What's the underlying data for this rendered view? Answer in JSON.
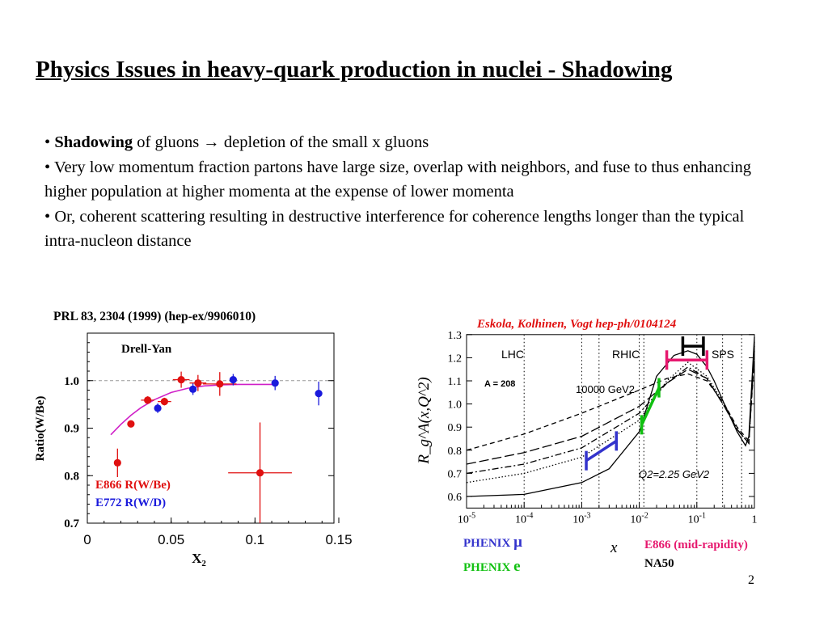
{
  "title": "Physics Issues in heavy-quark production in nuclei - Shadowing",
  "bullets": {
    "b1_bold": "Shadowing",
    "b1_rest": "of gluons → depletion of the small x gluons",
    "b2": "Very low momentum fraction partons have large size, overlap with neighbors, and fuse to thus enhancing higher population at higher momenta at the expense of lower momenta",
    "b3": "Or, coherent scattering resulting in destructive interference for coherence lengths longer than the typical intra-nucleon distance"
  },
  "page_number": "2",
  "colors": {
    "red": "#e01010",
    "blue": "#1a1adc",
    "magenta": "#d020c8",
    "pink": "#e6186e",
    "green": "#10c010",
    "indigo": "#3333cc"
  },
  "chart_data": [
    {
      "type": "scatter",
      "reference": "PRL 83, 2304 (1999) (hep-ex/9906010)",
      "annotation": "Drell-Yan",
      "xlabel": "X",
      "xlabel_sub": "2",
      "ylabel": "Ratio(W/Be)",
      "xlim": [
        0,
        0.15
      ],
      "ylim": [
        0.7,
        1.1
      ],
      "xticks": [
        "0",
        "0.05",
        "0.1",
        "0.15"
      ],
      "yticks": [
        "0.7",
        "0.8",
        "0.9",
        "1.0"
      ],
      "reference_line": 1.0,
      "series": [
        {
          "name": "E866 R(W/Be)",
          "color": "#e01010",
          "points": [
            {
              "x": 0.018,
              "y": 0.827,
              "yerr": 0.03,
              "xerr": 0
            },
            {
              "x": 0.026,
              "y": 0.909,
              "yerr": 0.006,
              "xerr": 0
            },
            {
              "x": 0.036,
              "y": 0.959,
              "yerr": 0.008,
              "xerr": 0.004
            },
            {
              "x": 0.046,
              "y": 0.956,
              "yerr": 0.008,
              "xerr": 0.004
            },
            {
              "x": 0.056,
              "y": 1.002,
              "yerr": 0.017,
              "xerr": 0.005
            },
            {
              "x": 0.066,
              "y": 0.995,
              "yerr": 0.017,
              "xerr": 0.005
            },
            {
              "x": 0.079,
              "y": 0.993,
              "yerr": 0.025,
              "xerr": 0.01
            },
            {
              "x": 0.103,
              "y": 0.806,
              "yerr": 0.106,
              "xerr": 0.019
            }
          ]
        },
        {
          "name": "E772 R(W/D)",
          "color": "#1a1adc",
          "points": [
            {
              "x": 0.042,
              "y": 0.942,
              "yerr": 0.01,
              "xerr": 0
            },
            {
              "x": 0.063,
              "y": 0.982,
              "yerr": 0.012,
              "xerr": 0
            },
            {
              "x": 0.087,
              "y": 1.002,
              "yerr": 0.012,
              "xerr": 0
            },
            {
              "x": 0.112,
              "y": 0.995,
              "yerr": 0.015,
              "xerr": 0
            },
            {
              "x": 0.138,
              "y": 0.973,
              "yerr": 0.025,
              "xerr": 0
            }
          ]
        }
      ],
      "fit_curve": {
        "color": "#d020c8",
        "x": [
          0.014,
          0.02,
          0.026,
          0.032,
          0.04,
          0.05,
          0.06,
          0.07,
          0.08,
          0.09,
          0.1,
          0.112
        ],
        "y": [
          0.886,
          0.908,
          0.927,
          0.943,
          0.96,
          0.975,
          0.984,
          0.989,
          0.991,
          0.992,
          0.992,
          0.992
        ]
      }
    },
    {
      "type": "line",
      "reference": "Eskola, Kolhinen, Vogt hep-ph/0104124",
      "xlabel": "x",
      "ylabel": "R_g^A(x,Q^2)",
      "xscale": "log",
      "xlim": [
        1e-05,
        1
      ],
      "ylim": [
        0.55,
        1.3
      ],
      "xticks": [
        "10-5",
        "10-4",
        "10-3",
        "10-2",
        "10-1",
        "1"
      ],
      "yticks": [
        "0.6",
        "0.7",
        "0.8",
        "0.9",
        "1.0",
        "1.1",
        "1.2",
        "1.3"
      ],
      "annotations": {
        "A": "A = 208",
        "Q2_high": "10000 GeV2",
        "Q2_low": "Q2=2.25 GeV2",
        "regions": [
          "LHC",
          "RHIC",
          "SPS"
        ]
      },
      "series": [
        {
          "Q2": "2.25",
          "style": "solid",
          "color": "#000000",
          "x": [
            1e-05,
            0.0001,
            0.001,
            0.003,
            0.01,
            0.02,
            0.04,
            0.07,
            0.1,
            0.15,
            0.2,
            0.3,
            0.5,
            0.7,
            0.8,
            1
          ],
          "y": [
            0.6,
            0.609,
            0.66,
            0.72,
            0.88,
            1.12,
            1.21,
            1.23,
            1.215,
            1.16,
            1.1,
            1.0,
            0.88,
            0.82,
            0.86,
            1.29
          ]
        },
        {
          "style": "dotted",
          "color": "#000000",
          "x": [
            1e-05,
            0.0001,
            0.001,
            0.01,
            0.03,
            0.07,
            0.15,
            0.3,
            0.5,
            0.8,
            1
          ],
          "y": [
            0.66,
            0.7,
            0.77,
            0.93,
            1.1,
            1.18,
            1.12,
            1.0,
            0.89,
            0.83,
            1.27
          ]
        },
        {
          "style": "dashdot",
          "color": "#000000",
          "x": [
            1e-05,
            0.0001,
            0.001,
            0.01,
            0.03,
            0.07,
            0.15,
            0.3,
            0.5,
            0.8,
            1
          ],
          "y": [
            0.7,
            0.74,
            0.81,
            0.96,
            1.09,
            1.16,
            1.11,
            0.99,
            0.89,
            0.83,
            1.25
          ]
        },
        {
          "style": "longdash",
          "color": "#000000",
          "x": [
            1e-05,
            0.0001,
            0.001,
            0.01,
            0.03,
            0.07,
            0.15,
            0.3,
            0.5,
            0.8,
            1
          ],
          "y": [
            0.74,
            0.79,
            0.86,
            0.99,
            1.09,
            1.15,
            1.11,
            0.99,
            0.89,
            0.83,
            1.23
          ]
        },
        {
          "Q2": "10000",
          "style": "dashed",
          "color": "#000000",
          "x": [
            1e-05,
            0.0001,
            0.001,
            0.01,
            0.03,
            0.07,
            0.15,
            0.3,
            0.5,
            0.8,
            1
          ],
          "y": [
            0.8,
            0.87,
            0.96,
            1.06,
            1.11,
            1.13,
            1.1,
            1.0,
            0.9,
            0.84,
            1.2
          ]
        }
      ],
      "coverage_bars": [
        {
          "color": "#3333cc",
          "x0": 0.0012,
          "x1": 0.004,
          "y0": 0.755,
          "y1": 0.84
        },
        {
          "color": "#10c010",
          "x0": 0.011,
          "x1": 0.022,
          "y0": 0.91,
          "y1": 1.07
        },
        {
          "color": "#e6186e",
          "x0": 0.03,
          "x1": 0.15,
          "y0": 1.19,
          "y1": 1.19
        },
        {
          "color": "#000000",
          "x0": 0.057,
          "x1": 0.13,
          "y0": 1.25,
          "y1": 1.25
        }
      ],
      "legend": [
        {
          "label": "PHENIX",
          "symbol": "μ",
          "color": "#3333cc"
        },
        {
          "label": "PHENIX",
          "symbol": "e",
          "color": "#10c010"
        },
        {
          "label": "E866 (mid-rapidity)",
          "color": "#e6186e"
        },
        {
          "label": "NA50",
          "color": "#000000"
        }
      ]
    }
  ]
}
